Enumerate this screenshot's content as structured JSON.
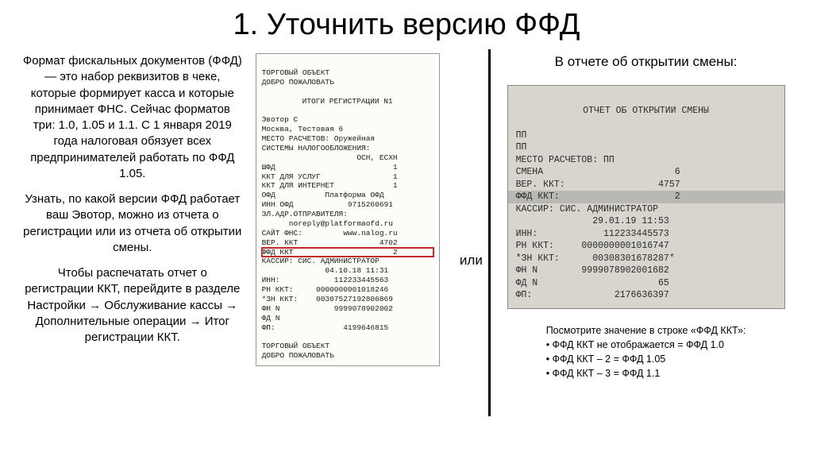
{
  "title": "1. Уточнить версию ФФД",
  "left": {
    "p1": "Формат фискальных документов (ФФД) — это набор реквизитов в чеке, которые формирует касса и которые принимает ФНС. Сейчас форматов три: 1.0, 1.05 и 1.1. С 1 января 2019 года налоговая обязует всех предпринимателей работать по ФФД 1.05.",
    "p2": "Узнать, по какой версии ФФД работает ваш Эвотор, можно из отчета о регистрации или из отчета об открытии смены.",
    "p3": "Чтобы распечатать отчет о регистрации ККТ, перейдите в разделе Настройки → Обслуживание кассы → Дополнительные операции → Итог регистрации ККТ."
  },
  "or_label": "или",
  "right_title": "В отчете об открытии смены:",
  "receipt1": {
    "header1": "ТОРГОВЫЙ ОБЪЕКТ",
    "header2": "ДОБРО ПОЖАЛОВАТЬ",
    "title": "ИТОГИ РЕГИСТРАЦИИ N1",
    "line_evotor": "Эвотор С",
    "line_msk": "Москва, Тестовая 6",
    "line_place": "МЕСТО РАСЧЕТОВ: Оружейная",
    "line_tax": "СИСТЕМЫ НАЛОГООБЛОЖЕНИЯ:",
    "line_tax_v": "                     ОСН, ЕСХН",
    "line_shfd": "ШФД                          1",
    "line_uslug": "ККТ ДЛЯ УСЛУГ                1",
    "line_inet": "ККТ ДЛЯ ИНТЕРНЕТ             1",
    "line_ofd": "ОФД           Платформа ОФД",
    "line_inn": "ИНН ОФД            9715260691",
    "line_email": "ЭЛ.АДР.ОТПРАВИТЕЛЯ:",
    "line_email_v": "      noreply@platformaofd.ru",
    "line_fns": "САЙТ ФНС:         www.nalog.ru",
    "line_ver": "ВЕР. ККТ                  4702",
    "line_ffd": "ФФД ККТ                      2",
    "line_kassir": "КАССИР: СИС. АДМИНИСТРАТОР",
    "line_date": "              04.10.18 11:31",
    "line_inn2": "ИНН:            112233445563",
    "line_rn": "РН ККТ:     0000000001018246",
    "line_zn": "*ЗН ККТ:    00307527192806869",
    "line_fn": "ФН N            9999078902002",
    "line_fd": "ФД N",
    "line_fp": "ФП:               4199646815",
    "footer1": "ТОРГОВЫЙ ОБЪЕКТ",
    "footer2": "ДОБРО ПОЖАЛОВАТЬ"
  },
  "receipt2": {
    "title": "ОТЧЕТ ОБ ОТКРЫТИИ СМЕНЫ",
    "l_pp1": "ПП",
    "l_pp2": "ПП",
    "l_place": "МЕСТО РАСЧЕТОВ: ПП",
    "l_smena": "СМЕНА                        6",
    "l_ver": "ВЕР. ККТ:                 4757",
    "l_ffd": "ФФД ККТ:                     2",
    "l_kas": "КАССИР: СИС. АДМИНИСТРАТОР",
    "l_date": "              29.01.19 11:53",
    "l_inn": "ИНН:            112233445573",
    "l_rn": "РН ККТ:     0000000001016747",
    "l_zn": "*ЗН ККТ:      00308301678287*",
    "l_fn": "ФН N        9999078902001682",
    "l_fd": "ФД N                      65",
    "l_fp": "ФП:               2176636397"
  },
  "notes": {
    "l1": "Посмотрите значение в строке «ФФД ККТ»:",
    "l2": "• ФФД ККТ не отображается = ФФД 1.0",
    "l3": "• ФФД ККТ – 2 = ФФД 1.05",
    "l4": "• ФФД ККТ – 3 = ФФД 1.1"
  },
  "colors": {
    "highlight_border": "#c42a2a",
    "receipt2_bg": "#d8d5ce",
    "receipt2_hl": "#b9b8b3"
  }
}
